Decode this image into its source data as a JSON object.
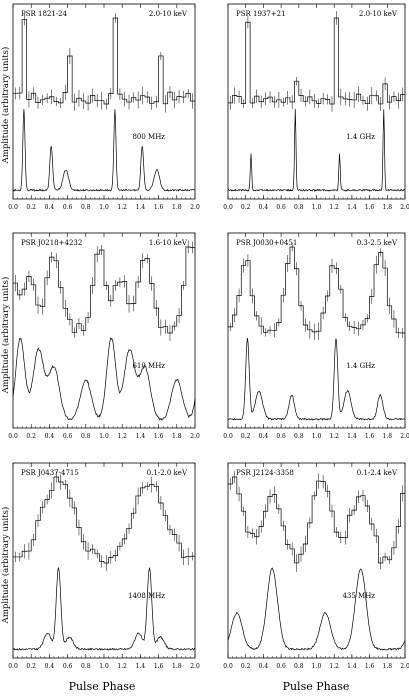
{
  "figure": {
    "x_axis_label": "Pulse Phase",
    "y_axis_label": "Amplitude (arbitrary units)"
  },
  "chart_data": [
    {
      "type": "line",
      "name": "PSR 1821-24",
      "xlim": [
        0,
        2.0
      ],
      "x_ticks": [
        "0.0",
        "0.2",
        "0.4",
        "0.6",
        "0.8",
        "1.0",
        "1.2",
        "1.4",
        "1.6",
        "1.8",
        "2.0"
      ],
      "ylabel": "Amplitude (arbitrary units)",
      "upper_band": "2.0-10 keV",
      "lower_band": "800 MHz",
      "upper_peaks": [
        [
          0.12,
          1.0,
          0.008
        ],
        [
          0.62,
          0.45,
          0.015
        ]
      ],
      "lower_peaks": [
        [
          0.12,
          1.0,
          0.012
        ],
        [
          0.42,
          0.55,
          0.015
        ],
        [
          0.58,
          0.25,
          0.03
        ]
      ],
      "upper_baseline": 0.1,
      "lower_baseline": 0.08
    },
    {
      "type": "line",
      "name": "PSR 1937+21",
      "xlim": [
        0,
        2.0
      ],
      "x_ticks": [
        "0.0",
        "0.2",
        "0.4",
        "0.6",
        "0.8",
        "1.0",
        "1.2",
        "1.4",
        "1.6",
        "1.8",
        "2.0"
      ],
      "ylabel": "Amplitude (arbitrary units)",
      "upper_band": "2.0-10 keV",
      "lower_band": "1.4 GHz",
      "upper_peaks": [
        [
          0.23,
          1.0,
          0.012
        ],
        [
          0.76,
          0.55,
          0.01
        ]
      ],
      "lower_peaks": [
        [
          0.26,
          0.45,
          0.008
        ],
        [
          0.76,
          1.0,
          0.008
        ]
      ],
      "upper_baseline": 0.45,
      "lower_baseline": 0.05
    },
    {
      "type": "line",
      "name": "PSR J0218+4232",
      "xlim": [
        0,
        2.0
      ],
      "x_ticks": [
        "0.0",
        "0.2",
        "0.4",
        "0.6",
        "0.8",
        "1.0",
        "1.2",
        "1.4",
        "1.6",
        "1.8",
        "2.0"
      ],
      "ylabel": "Amplitude (arbitrary units)",
      "upper_band": "1.6-10 keV",
      "lower_band": "610 MHz",
      "upper_peaks": [
        [
          0.18,
          0.55,
          0.08
        ],
        [
          0.45,
          0.85,
          0.07
        ],
        [
          0.95,
          0.95,
          0.06
        ]
      ],
      "lower_peaks": [
        [
          0.08,
          0.7,
          0.05
        ],
        [
          0.28,
          0.6,
          0.06
        ],
        [
          0.45,
          0.45,
          0.06
        ],
        [
          0.8,
          0.35,
          0.06
        ]
      ],
      "upper_baseline": 0.3,
      "lower_baseline": 0.1
    },
    {
      "type": "line",
      "name": "PSR J0030+0451",
      "xlim": [
        0,
        2.0
      ],
      "x_ticks": [
        "0.0",
        "0.2",
        "0.4",
        "0.6",
        "0.8",
        "1.0",
        "1.2",
        "1.4",
        "1.6",
        "1.8",
        "2.0"
      ],
      "ylabel": "Amplitude (arbitrary units)",
      "upper_band": "0.3-2.5 keV",
      "lower_band": "1.4 GHz",
      "upper_peaks": [
        [
          0.2,
          0.85,
          0.07
        ],
        [
          0.72,
          1.0,
          0.07
        ]
      ],
      "lower_peaks": [
        [
          0.22,
          1.0,
          0.02
        ],
        [
          0.35,
          0.35,
          0.04
        ],
        [
          0.72,
          0.3,
          0.03
        ]
      ],
      "upper_baseline": 0.15,
      "lower_baseline": 0.05
    },
    {
      "type": "line",
      "name": "PSR J0437-4715",
      "xlim": [
        0,
        2.0
      ],
      "x_ticks": [
        "0.0",
        "0.2",
        "0.4",
        "0.6",
        "0.8",
        "1.0",
        "1.2",
        "1.4",
        "1.6",
        "1.8",
        "2.0"
      ],
      "ylabel": "Amplitude (arbitrary units)",
      "upper_band": "0.1-2.0 keV",
      "lower_band": "1408 MHz",
      "upper_peaks": [
        [
          0.5,
          1.0,
          0.18
        ]
      ],
      "lower_peaks": [
        [
          0.5,
          1.0,
          0.025
        ],
        [
          0.38,
          0.2,
          0.04
        ],
        [
          0.62,
          0.15,
          0.04
        ]
      ],
      "upper_baseline": 0.15,
      "lower_baseline": 0.05
    },
    {
      "type": "line",
      "name": "PSR J2124-3358",
      "xlim": [
        0,
        2.0
      ],
      "x_ticks": [
        "0.0",
        "0.2",
        "0.4",
        "0.6",
        "0.8",
        "1.0",
        "1.2",
        "1.4",
        "1.6",
        "1.8",
        "2.0"
      ],
      "ylabel": "Amplitude (arbitrary units)",
      "upper_band": "0.1-2.4 keV",
      "lower_band": "435 MHz",
      "upper_peaks": [
        [
          0.05,
          0.85,
          0.12
        ],
        [
          0.5,
          0.7,
          0.14
        ]
      ],
      "lower_peaks": [
        [
          0.1,
          0.45,
          0.06
        ],
        [
          0.5,
          1.0,
          0.06
        ]
      ],
      "upper_baseline": 0.2,
      "lower_baseline": 0.05
    }
  ]
}
